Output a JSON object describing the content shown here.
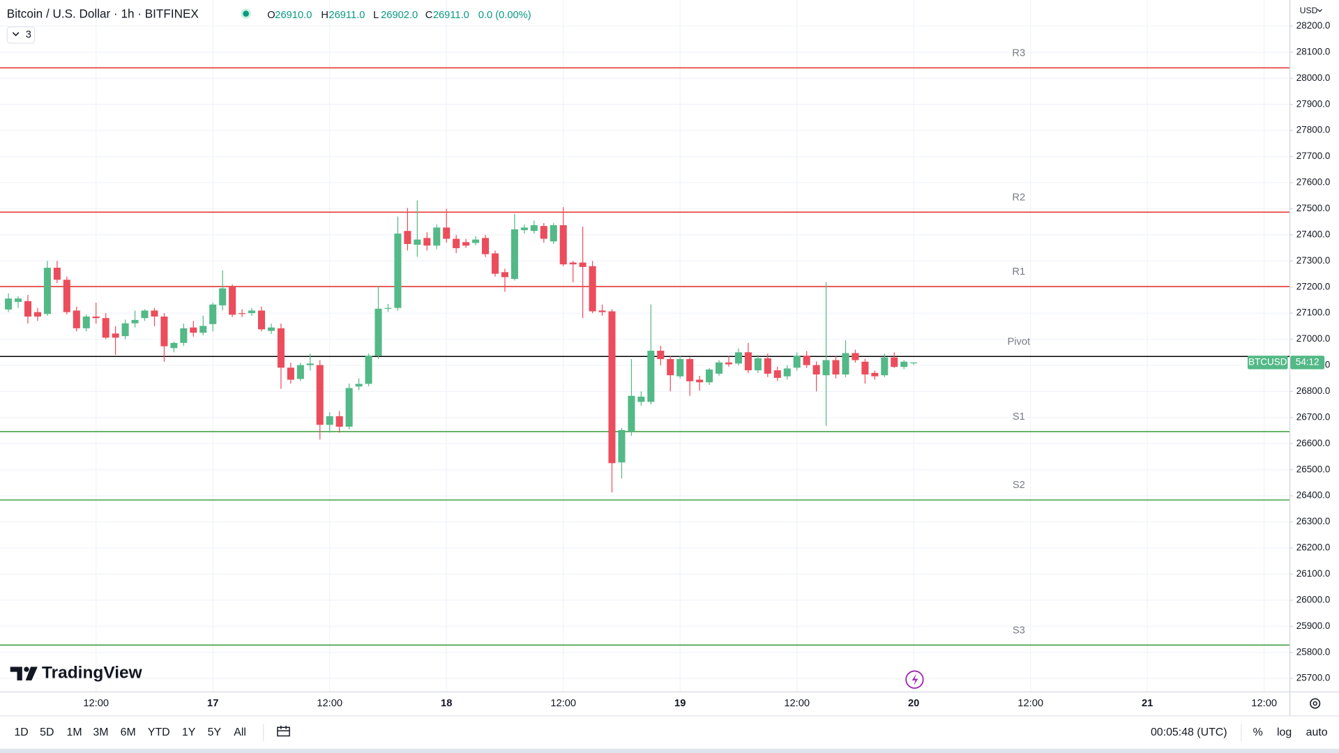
{
  "header": {
    "title": "Bitcoin / U.S. Dollar · 1h · BITFINEX",
    "ohlc": [
      {
        "key": "O",
        "value": "26910.0"
      },
      {
        "key": "H",
        "value": "26911.0"
      },
      {
        "key": "L",
        "value": "26902.0"
      },
      {
        "key": "C",
        "value": "26911.0"
      }
    ],
    "change": "0.0 (0.00%)",
    "indicators": "3"
  },
  "branding": "TradingView",
  "toolbar": {
    "ranges": [
      "1D",
      "5D",
      "1M",
      "3M",
      "6M",
      "YTD",
      "1Y",
      "5Y",
      "All"
    ],
    "clock": "00:05:48 (UTC)",
    "options": [
      "%",
      "log",
      "auto"
    ]
  },
  "chart_data": {
    "type": "candlestick",
    "currency": "USD",
    "symbol_tag": "BTCUSD",
    "countdown": "54:12",
    "up_color": "#53b987",
    "down_color": "#eb4d5c",
    "grid": true,
    "x": [
      "16 03:00",
      "16 04:00",
      "16 05:00",
      "16 06:00",
      "16 07:00",
      "16 08:00",
      "16 09:00",
      "16 10:00",
      "16 11:00",
      "16 12:00",
      "16 13:00",
      "16 14:00",
      "16 15:00",
      "16 16:00",
      "16 17:00",
      "16 18:00",
      "16 19:00",
      "16 20:00",
      "16 21:00",
      "16 22:00",
      "16 23:00",
      "17 00:00",
      "17 01:00",
      "17 02:00",
      "17 03:00",
      "17 04:00",
      "17 05:00",
      "17 06:00",
      "17 07:00",
      "17 08:00",
      "17 09:00",
      "17 10:00",
      "17 11:00",
      "17 12:00",
      "17 13:00",
      "17 14:00",
      "17 15:00",
      "17 16:00",
      "17 17:00",
      "17 18:00",
      "17 19:00",
      "17 20:00",
      "17 21:00",
      "17 22:00",
      "17 23:00",
      "18 00:00",
      "18 01:00",
      "18 02:00",
      "18 03:00",
      "18 04:00",
      "18 05:00",
      "18 06:00",
      "18 07:00",
      "18 08:00",
      "18 09:00",
      "18 10:00",
      "18 11:00",
      "18 12:00",
      "18 13:00",
      "18 14:00",
      "18 15:00",
      "18 16:00",
      "18 17:00",
      "18 18:00",
      "18 19:00",
      "18 20:00",
      "18 21:00",
      "18 22:00",
      "18 23:00",
      "19 00:00",
      "19 01:00",
      "19 02:00",
      "19 03:00",
      "19 04:00",
      "19 05:00",
      "19 06:00",
      "19 07:00",
      "19 08:00",
      "19 09:00",
      "19 10:00",
      "19 11:00",
      "19 12:00",
      "19 13:00",
      "19 14:00",
      "19 15:00",
      "19 16:00",
      "19 17:00",
      "19 18:00",
      "19 19:00",
      "19 20:00",
      "19 21:00",
      "19 22:00",
      "19 23:00",
      "20 00:00"
    ],
    "open": [
      27114,
      27143,
      27146,
      27104,
      27097,
      27274,
      27228,
      27110,
      27042,
      27087,
      27081,
      27022,
      27012,
      27061,
      27081,
      27110,
      27087,
      26966,
      26986,
      27045,
      27025,
      27058,
      27130,
      27202,
      27100,
      27100,
      27110,
      27032,
      27042,
      26891,
      26848,
      26901,
      26901,
      26672,
      26705,
      26665,
      26819,
      26829,
      26937,
      27117,
      27120,
      27415,
      27362,
      27388,
      27359,
      27428,
      27385,
      27372,
      27369,
      27388,
      27329,
      27257,
      27231,
      27418,
      27415,
      27434,
      27375,
      27437,
      27294,
      27294,
      27280,
      27110,
      27107,
      26528,
      26646,
      26760,
      26760,
      26956,
      26924,
      26858,
      26924,
      26845,
      26835,
      26868,
      26911,
      26907,
      26950,
      26881,
      26927,
      26881,
      26858,
      26891,
      26937,
      26901,
      26862,
      26920,
      26865,
      26947,
      26914,
      26871,
      26862,
      26930,
      26894,
      26910
    ],
    "high": [
      27176,
      27165,
      27170,
      27120,
      27300,
      27300,
      27240,
      27125,
      27095,
      27140,
      27100,
      27050,
      27075,
      27110,
      27115,
      27120,
      27100,
      26990,
      27060,
      27070,
      27090,
      27140,
      27264,
      27210,
      27115,
      27120,
      27125,
      27060,
      27060,
      26910,
      26910,
      26945,
      26920,
      26720,
      26725,
      26830,
      26850,
      26945,
      27202,
      27135,
      27470,
      27503,
      27532,
      27410,
      27440,
      27500,
      27400,
      27385,
      27395,
      27400,
      27340,
      27270,
      27480,
      27440,
      27455,
      27445,
      27445,
      27506,
      27300,
      27431,
      27300,
      27133,
      27115,
      26660,
      26924,
      26800,
      27133,
      26975,
      26935,
      26935,
      26930,
      26860,
      26890,
      26920,
      26935,
      26965,
      26986,
      26940,
      26945,
      26895,
      26900,
      26950,
      26955,
      26915,
      27218,
      26935,
      26996,
      26960,
      26925,
      26880,
      26945,
      26950,
      26920,
      26911
    ],
    "low": [
      27104,
      27120,
      27060,
      27070,
      27090,
      27215,
      27095,
      27030,
      27030,
      27060,
      27000,
      26940,
      27000,
      27045,
      27070,
      27050,
      26914,
      26950,
      26975,
      27010,
      27015,
      27030,
      27110,
      27085,
      27085,
      27090,
      27030,
      27020,
      26810,
      26830,
      26840,
      26880,
      26616,
      26642,
      26642,
      26655,
      26805,
      26820,
      26925,
      27105,
      27110,
      27340,
      27316,
      27340,
      27345,
      27370,
      27330,
      27350,
      27360,
      27315,
      27240,
      27182,
      27225,
      27405,
      27405,
      27370,
      27365,
      27280,
      27218,
      27081,
      27100,
      27090,
      26413,
      26466,
      26630,
      26745,
      26750,
      26900,
      26800,
      26850,
      26783,
      26803,
      26825,
      26860,
      26895,
      26900,
      26870,
      26870,
      26855,
      26840,
      26845,
      26880,
      26890,
      26800,
      26668,
      26850,
      26855,
      26910,
      26830,
      26845,
      26855,
      26890,
      26885,
      26902
    ],
    "close": [
      27156,
      27156,
      27087,
      27087,
      27274,
      27228,
      27104,
      27042,
      27087,
      27081,
      27006,
      27006,
      27061,
      27074,
      27110,
      27087,
      26973,
      26986,
      27042,
      27025,
      27051,
      27133,
      27195,
      27094,
      27097,
      27110,
      27038,
      27045,
      26891,
      26845,
      26901,
      26907,
      26672,
      26705,
      26665,
      26813,
      26829,
      26937,
      27117,
      27120,
      27405,
      27365,
      27382,
      27359,
      27428,
      27385,
      27349,
      27359,
      27382,
      27326,
      27251,
      27238,
      27421,
      27428,
      27437,
      27385,
      27437,
      27287,
      27287,
      27277,
      27107,
      27104,
      26525,
      26652,
      26783,
      26780,
      26956,
      26924,
      26862,
      26924,
      26839,
      26835,
      26884,
      26911,
      26904,
      26950,
      26881,
      26927,
      26868,
      26852,
      26888,
      26937,
      26901,
      26865,
      26920,
      26865,
      26947,
      26920,
      26865,
      26858,
      26930,
      26894,
      26914,
      26911
    ],
    "xlim": [
      "16 02:08",
      "21 14:36"
    ],
    "xticks": [
      {
        "value": "16 12:00",
        "label": "12:00"
      },
      {
        "value": "17 00:00",
        "label": "17"
      },
      {
        "value": "17 12:00",
        "label": "12:00"
      },
      {
        "value": "18 00:00",
        "label": "18"
      },
      {
        "value": "18 12:00",
        "label": "12:00"
      },
      {
        "value": "19 00:00",
        "label": "19"
      },
      {
        "value": "19 12:00",
        "label": "12:00"
      },
      {
        "value": "20 00:00",
        "label": "20"
      },
      {
        "value": "20 12:00",
        "label": "12:00"
      },
      {
        "value": "21 00:00",
        "label": "21"
      },
      {
        "value": "21 12:00",
        "label": "12:00"
      }
    ],
    "ylim": [
      25650,
      28300
    ],
    "yticks": [
      {
        "value": 25700,
        "label": "25700.0"
      },
      {
        "value": 25800,
        "label": "25800.0"
      },
      {
        "value": 25900,
        "label": "25900.0"
      },
      {
        "value": 26000,
        "label": "26000.0"
      },
      {
        "value": 26100,
        "label": "26100.0"
      },
      {
        "value": 26200,
        "label": "26200.0"
      },
      {
        "value": 26300,
        "label": "26300.0"
      },
      {
        "value": 26400,
        "label": "26400.0"
      },
      {
        "value": 26500,
        "label": "26500.0"
      },
      {
        "value": 26600,
        "label": "26600.0"
      },
      {
        "value": 26700,
        "label": "26700.0"
      },
      {
        "value": 26800,
        "label": "26800.0"
      },
      {
        "value": 26900,
        "label": "26900.0"
      },
      {
        "value": 27000,
        "label": "27000.0"
      },
      {
        "value": 27100,
        "label": "27100.0"
      },
      {
        "value": 27200,
        "label": "27200.0"
      },
      {
        "value": 27300,
        "label": "27300.0"
      },
      {
        "value": 27400,
        "label": "27400.0"
      },
      {
        "value": 27500,
        "label": "27500.0"
      },
      {
        "value": 27600,
        "label": "27600.0"
      },
      {
        "value": 27700,
        "label": "27700.0"
      },
      {
        "value": 27800,
        "label": "27800.0"
      },
      {
        "value": 27900,
        "label": "27900.0"
      },
      {
        "value": 28000,
        "label": "28000.0"
      },
      {
        "value": 28100,
        "label": "28100.0"
      },
      {
        "value": 28200,
        "label": "28200.0"
      }
    ],
    "levels": [
      {
        "name": "R3",
        "value": 28040,
        "color": "#e53935"
      },
      {
        "name": "R2",
        "value": 27487,
        "color": "#e53935"
      },
      {
        "name": "R1",
        "value": 27202,
        "color": "#e53935"
      },
      {
        "name": "Pivot",
        "value": 26934,
        "color": "#000000"
      },
      {
        "name": "S1",
        "value": 26646,
        "color": "#43a047"
      },
      {
        "name": "S2",
        "value": 26384,
        "color": "#43a047"
      },
      {
        "name": "S3",
        "value": 25828,
        "color": "#43a047"
      }
    ]
  }
}
